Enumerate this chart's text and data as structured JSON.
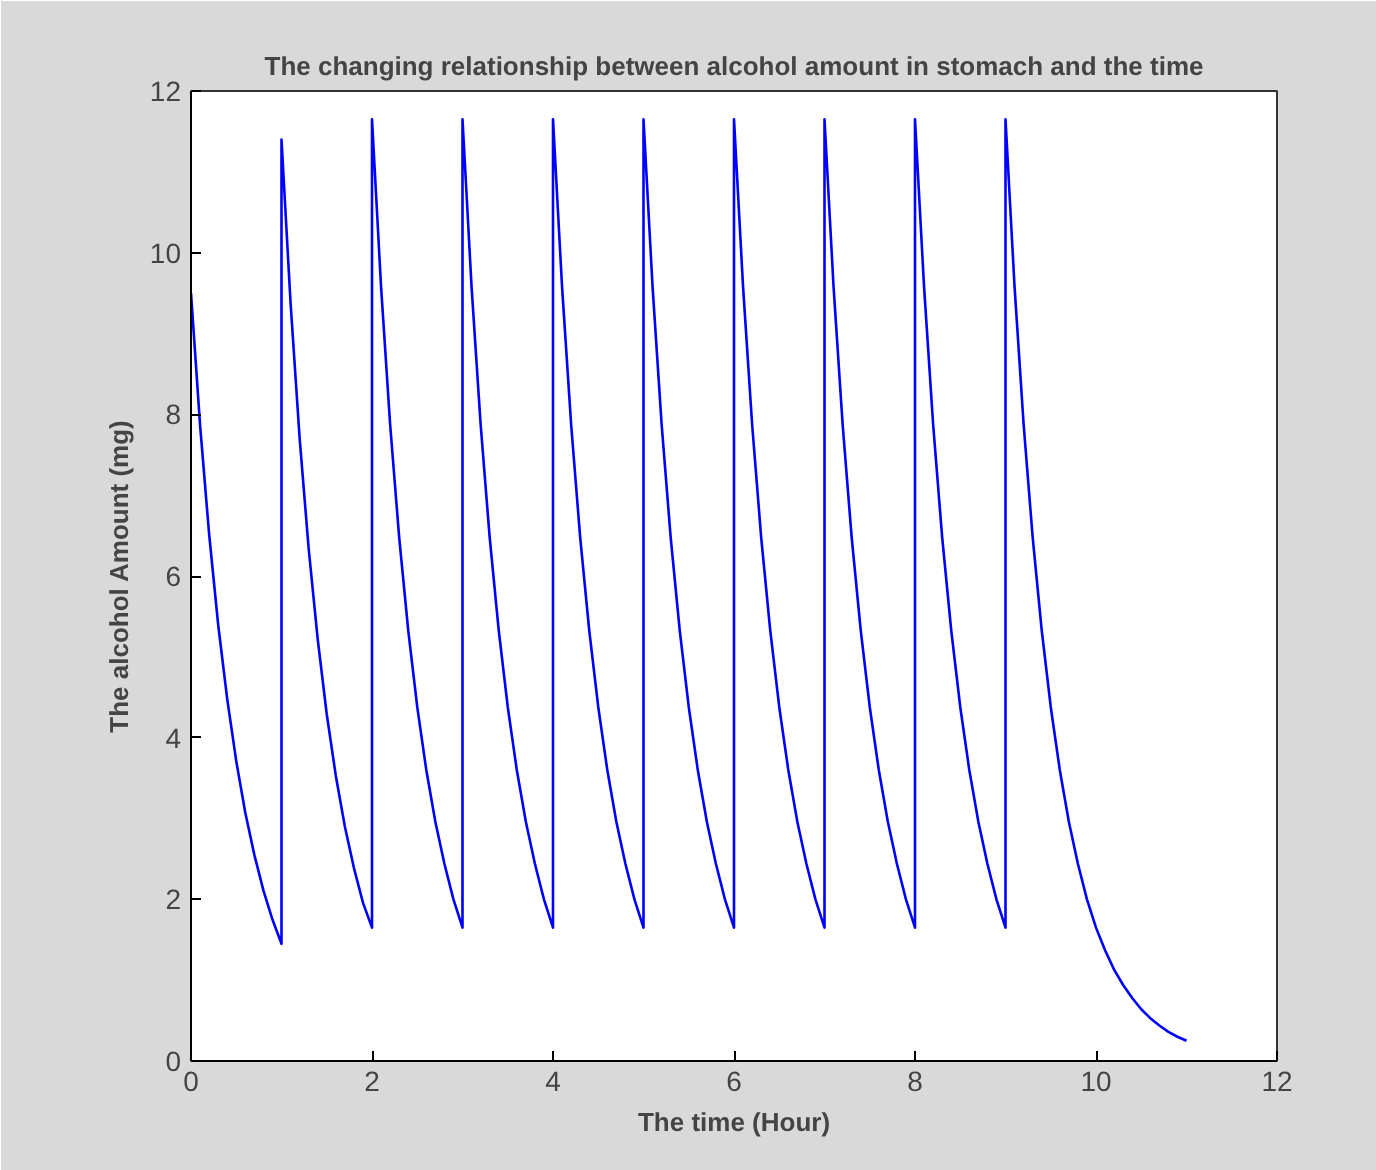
{
  "chart_data": {
    "type": "line",
    "title": "The changing relationship between alcohol amount in stomach and the time",
    "xlabel": "The time (Hour)",
    "ylabel": "The alcohol Amount (mg)",
    "xlim": [
      0,
      12
    ],
    "ylim": [
      0,
      12
    ],
    "xticks": [
      0,
      2,
      4,
      6,
      8,
      10,
      12
    ],
    "yticks": [
      0,
      2,
      4,
      6,
      8,
      10,
      12
    ],
    "grid": false,
    "line_style": "solid",
    "series": [
      {
        "color": "#0000ff",
        "x": [
          0,
          0.1,
          0.2,
          0.3,
          0.4,
          0.5,
          0.6,
          0.7,
          0.8,
          0.9,
          1,
          1,
          1.1,
          1.2,
          1.3,
          1.4,
          1.5,
          1.6,
          1.7,
          1.8,
          1.9,
          2,
          2,
          2.1,
          2.2,
          2.3,
          2.4,
          2.5,
          2.6,
          2.7,
          2.8,
          2.9,
          3,
          3,
          3.1,
          3.2,
          3.3,
          3.4,
          3.5,
          3.6,
          3.7,
          3.8,
          3.9,
          4,
          4,
          4.1,
          4.2,
          4.3,
          4.4,
          4.5,
          4.6,
          4.7,
          4.8,
          4.9,
          5,
          5,
          5.1,
          5.2,
          5.3,
          5.4,
          5.5,
          5.6,
          5.7,
          5.8,
          5.9,
          6,
          6,
          6.1,
          6.2,
          6.3,
          6.4,
          6.5,
          6.6,
          6.7,
          6.8,
          6.9,
          7,
          7,
          7.1,
          7.2,
          7.3,
          7.4,
          7.5,
          7.6,
          7.7,
          7.8,
          7.9,
          8,
          8,
          8.1,
          8.2,
          8.3,
          8.4,
          8.5,
          8.6,
          8.7,
          8.8,
          8.9,
          9,
          9,
          9.1,
          9.2,
          9.3,
          9.4,
          9.5,
          9.6,
          9.7,
          9.8,
          9.9,
          10,
          10.1,
          10.2,
          10.3,
          10.4,
          10.5,
          10.6,
          10.7,
          10.8,
          10.9,
          11
        ],
        "values": [
          9.5,
          7.87,
          6.52,
          5.4,
          4.48,
          3.71,
          3.07,
          2.55,
          2.11,
          1.75,
          1.45,
          11.4,
          9.38,
          7.71,
          6.34,
          5.22,
          4.29,
          3.53,
          2.9,
          2.39,
          1.96,
          1.65,
          11.65,
          9.58,
          7.88,
          6.48,
          5.33,
          4.38,
          3.6,
          2.96,
          2.44,
          2.0,
          1.65,
          11.65,
          9.58,
          7.88,
          6.48,
          5.33,
          4.38,
          3.6,
          2.96,
          2.44,
          2.0,
          1.65,
          11.65,
          9.58,
          7.88,
          6.48,
          5.33,
          4.38,
          3.6,
          2.96,
          2.44,
          2.0,
          1.65,
          11.65,
          9.58,
          7.88,
          6.48,
          5.33,
          4.38,
          3.6,
          2.96,
          2.44,
          2.0,
          1.65,
          11.65,
          9.58,
          7.88,
          6.48,
          5.33,
          4.38,
          3.6,
          2.96,
          2.44,
          2.0,
          1.65,
          11.65,
          9.58,
          7.88,
          6.48,
          5.33,
          4.38,
          3.6,
          2.96,
          2.44,
          2.0,
          1.65,
          11.65,
          9.58,
          7.88,
          6.48,
          5.33,
          4.38,
          3.6,
          2.96,
          2.44,
          2.0,
          1.65,
          11.65,
          9.58,
          7.88,
          6.48,
          5.33,
          4.38,
          3.6,
          2.96,
          2.44,
          2.0,
          1.65,
          1.37,
          1.13,
          0.94,
          0.78,
          0.64,
          0.53,
          0.44,
          0.36,
          0.3,
          0.25
        ]
      }
    ]
  }
}
